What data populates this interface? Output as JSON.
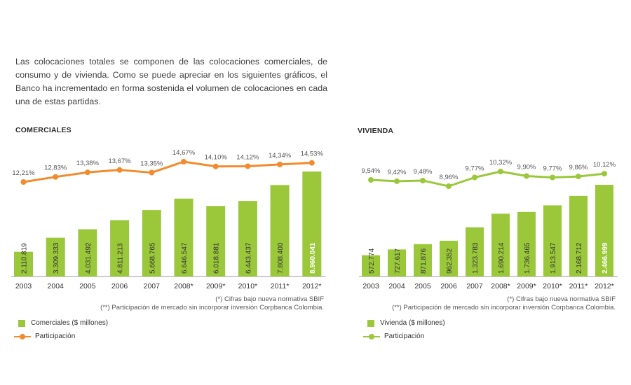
{
  "intro_text": "Las colocaciones totales se componen de las colocaciones comerciales, de consumo y de vivienda. Como se puede apreciar en los siguientes gráficos, el Banco ha incrementado en forma sostenida el volumen de colocaciones en cada una de estas partidas.",
  "colors": {
    "comerciales_bar": "#9bc83b",
    "comerciales_line": "#f28b2e",
    "vivienda_bar": "#9bc83b",
    "vivienda_line": "#9bc83b"
  },
  "chart_data": [
    {
      "type": "bar",
      "title": "COMERCIALES",
      "categories": [
        "2003",
        "2004",
        "2005",
        "2006",
        "2007",
        "2008*",
        "2009*",
        "2010*",
        "2011*",
        "2012*"
      ],
      "series": [
        {
          "name": "Comerciales ($ millones)",
          "values": [
            2110819,
            3309333,
            4031492,
            4811213,
            5668765,
            6646547,
            6018881,
            6443437,
            7808400,
            8960041
          ],
          "labels": [
            "2.110.819",
            "3.309.333",
            "4.031.492",
            "4.811.213",
            "5.668.765",
            "6.646.547",
            "6.018.881",
            "6.443.437",
            "7.808.400",
            "8.960.041"
          ]
        },
        {
          "name": "Participación",
          "values": [
            12.21,
            12.83,
            13.38,
            13.67,
            13.35,
            14.67,
            14.1,
            14.12,
            14.34,
            14.53
          ],
          "labels": [
            "12,21%",
            "12,83%",
            "13,38%",
            "13,67%",
            "13,35%",
            "14,67%",
            "14,10%",
            "14,12%",
            "14,34%",
            "14,53%"
          ]
        }
      ],
      "notes": [
        "(*) Cifras bajo nueva normativa SBIF",
        "(**) Participación de mercado sin incorporar inversión Corpbanca Colombia."
      ]
    },
    {
      "type": "bar",
      "title": "VIVIENDA",
      "categories": [
        "2003",
        "2004",
        "2005",
        "2006",
        "2007",
        "2008*",
        "2009*",
        "2010*",
        "2011*",
        "2012*"
      ],
      "series": [
        {
          "name": "Vivienda ($ millones)",
          "values": [
            572774,
            727617,
            871876,
            962352,
            1323783,
            1690214,
            1736465,
            1913547,
            2168712,
            2466999
          ],
          "labels": [
            "572.774",
            "727.617",
            "871.876",
            "962.352",
            "1.323.783",
            "1.690.214",
            "1.736.465",
            "1.913.547",
            "2.168.712",
            "2.466.999"
          ]
        },
        {
          "name": "Participación",
          "values": [
            9.54,
            9.42,
            9.48,
            8.96,
            9.77,
            10.32,
            9.9,
            9.77,
            9.86,
            10.12
          ],
          "labels": [
            "9,54%",
            "9,42%",
            "9,48%",
            "8,96%",
            "9,77%",
            "10,32%",
            "9,90%",
            "9,77%",
            "9,86%",
            "10,12%"
          ]
        }
      ],
      "notes": [
        "(*) Cifras bajo nueva normativa SBIF",
        "(**) Participación de mercado sin incorporar inversión Corpbanca Colombia."
      ]
    }
  ]
}
